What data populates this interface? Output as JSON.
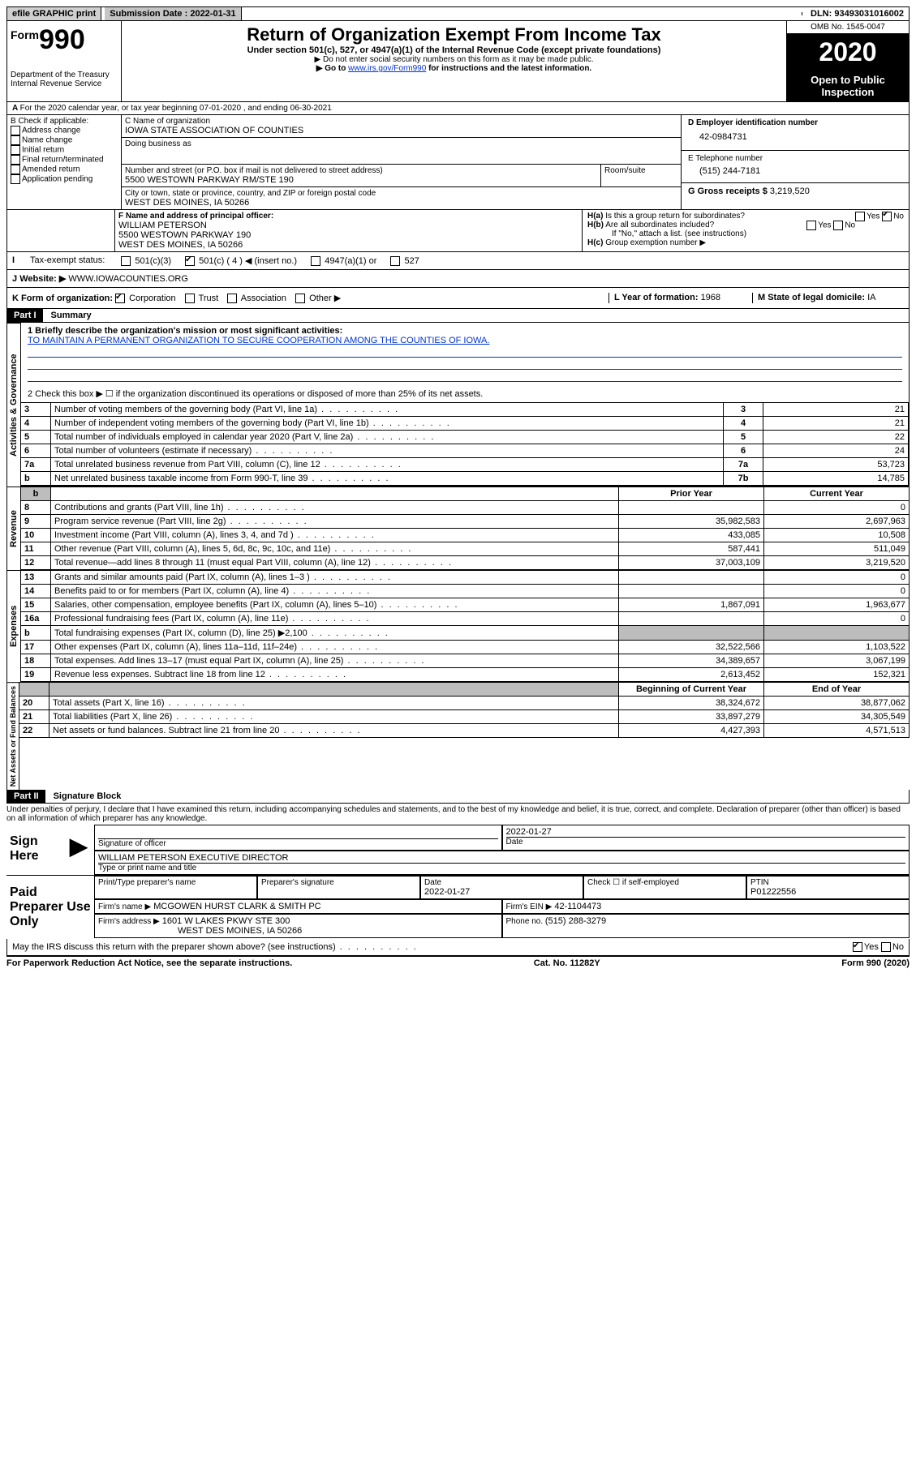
{
  "topbar": {
    "efile": "efile GRAPHIC print",
    "sub_label": "Submission Date : ",
    "sub_date": "2022-01-31",
    "dln_label": "DLN: ",
    "dln": "93493031016002"
  },
  "header": {
    "form_small": "Form",
    "form_num": "990",
    "dept": "Department of the Treasury\nInternal Revenue Service",
    "title": "Return of Organization Exempt From Income Tax",
    "subtitle": "Under section 501(c), 527, or 4947(a)(1) of the Internal Revenue Code (except private foundations)",
    "note1": "▶ Do not enter social security numbers on this form as it may be made public.",
    "note2_pre": "▶ Go to ",
    "note2_link": "www.irs.gov/Form990",
    "note2_post": " for instructions and the latest information.",
    "omb": "OMB No. 1545-0047",
    "year": "2020",
    "inspect": "Open to Public Inspection"
  },
  "lineA": "For the 2020 calendar year, or tax year beginning 07-01-2020 , and ending 06-30-2021",
  "boxB": {
    "heading": "B Check if applicable:",
    "items": [
      "Address change",
      "Name change",
      "Initial return",
      "Final return/terminated",
      "Amended return",
      "Application pending"
    ]
  },
  "boxC": {
    "name_label": "C Name of organization",
    "name": "IOWA STATE ASSOCIATION OF COUNTIES",
    "dba_label": "Doing business as",
    "street_label": "Number and street (or P.O. box if mail is not delivered to street address)",
    "street": "5500 WESTOWN PARKWAY RM/STE 190",
    "room_label": "Room/suite",
    "city_label": "City or town, state or province, country, and ZIP or foreign postal code",
    "city": "WEST DES MOINES, IA  50266"
  },
  "boxD": {
    "label": "D Employer identification number",
    "value": "42-0984731"
  },
  "boxE": {
    "label": "E Telephone number",
    "value": "(515) 244-7181"
  },
  "boxG": {
    "label": "G Gross receipts $ ",
    "value": "3,219,520"
  },
  "boxF": {
    "label": "F Name and address of principal officer:",
    "name": "WILLIAM PETERSON",
    "addr1": "5500 WESTOWN PARKWAY 190",
    "addr2": "WEST DES MOINES, IA  50266"
  },
  "boxH": {
    "a": "Is this a group return for subordinates?",
    "b": "Are all subordinates included?",
    "note": "If \"No,\" attach a list. (see instructions)",
    "c": "Group exemption number ▶"
  },
  "boxI": {
    "label": "Tax-exempt status:",
    "opts": [
      "501(c)(3)",
      "501(c) ( 4 ) ◀ (insert no.)",
      "4947(a)(1) or",
      "527"
    ]
  },
  "boxJ": {
    "label": "Website: ▶",
    "value": "WWW.IOWACOUNTIES.ORG"
  },
  "boxK": {
    "label": "K Form of organization:",
    "opts": [
      "Corporation",
      "Trust",
      "Association",
      "Other ▶"
    ]
  },
  "boxL": {
    "label": "L Year of formation: ",
    "value": "1968"
  },
  "boxM": {
    "label": "M State of legal domicile: ",
    "value": "IA"
  },
  "part1": {
    "tag": "Part I",
    "label": "Summary"
  },
  "summary": {
    "line1_label": "1  Briefly describe the organization's mission or most significant activities:",
    "mission": "TO MAINTAIN A PERMANENT ORGANIZATION TO SECURE COOPERATION AMONG THE COUNTIES OF IOWA.",
    "line2": "2   Check this box ▶ ☐ if the organization discontinued its operations or disposed of more than 25% of its net assets."
  },
  "vlabels": {
    "gov": "Activities & Governance",
    "rev": "Revenue",
    "exp": "Expenses",
    "net": "Net Assets or Fund Balances"
  },
  "columns": {
    "prior": "Prior Year",
    "current": "Current Year",
    "begin": "Beginning of Current Year",
    "end": "End of Year"
  },
  "rows": [
    {
      "n": "3",
      "label": "Number of voting members of the governing body (Part VI, line 1a)",
      "box": "3",
      "cur": "21"
    },
    {
      "n": "4",
      "label": "Number of independent voting members of the governing body (Part VI, line 1b)",
      "box": "4",
      "cur": "21"
    },
    {
      "n": "5",
      "label": "Total number of individuals employed in calendar year 2020 (Part V, line 2a)",
      "box": "5",
      "cur": "22"
    },
    {
      "n": "6",
      "label": "Total number of volunteers (estimate if necessary)",
      "box": "6",
      "cur": "24"
    },
    {
      "n": "7a",
      "label": "Total unrelated business revenue from Part VIII, column (C), line 12",
      "box": "7a",
      "cur": "53,723"
    },
    {
      "n": "b",
      "label": "Net unrelated business taxable income from Form 990-T, line 39",
      "box": "7b",
      "cur": "14,785"
    }
  ],
  "rev_rows": [
    {
      "n": "8",
      "label": "Contributions and grants (Part VIII, line 1h)",
      "prior": "",
      "cur": "0"
    },
    {
      "n": "9",
      "label": "Program service revenue (Part VIII, line 2g)",
      "prior": "35,982,583",
      "cur": "2,697,963"
    },
    {
      "n": "10",
      "label": "Investment income (Part VIII, column (A), lines 3, 4, and 7d )",
      "prior": "433,085",
      "cur": "10,508"
    },
    {
      "n": "11",
      "label": "Other revenue (Part VIII, column (A), lines 5, 6d, 8c, 9c, 10c, and 11e)",
      "prior": "587,441",
      "cur": "511,049"
    },
    {
      "n": "12",
      "label": "Total revenue—add lines 8 through 11 (must equal Part VIII, column (A), line 12)",
      "prior": "37,003,109",
      "cur": "3,219,520"
    }
  ],
  "exp_rows": [
    {
      "n": "13",
      "label": "Grants and similar amounts paid (Part IX, column (A), lines 1–3 )",
      "prior": "",
      "cur": "0"
    },
    {
      "n": "14",
      "label": "Benefits paid to or for members (Part IX, column (A), line 4)",
      "prior": "",
      "cur": "0"
    },
    {
      "n": "15",
      "label": "Salaries, other compensation, employee benefits (Part IX, column (A), lines 5–10)",
      "prior": "1,867,091",
      "cur": "1,963,677"
    },
    {
      "n": "16a",
      "label": "Professional fundraising fees (Part IX, column (A), line 11e)",
      "prior": "",
      "cur": "0"
    },
    {
      "n": "b",
      "label": "Total fundraising expenses (Part IX, column (D), line 25) ▶2,100",
      "prior": "grey",
      "cur": "grey"
    },
    {
      "n": "17",
      "label": "Other expenses (Part IX, column (A), lines 11a–11d, 11f–24e)",
      "prior": "32,522,566",
      "cur": "1,103,522"
    },
    {
      "n": "18",
      "label": "Total expenses. Add lines 13–17 (must equal Part IX, column (A), line 25)",
      "prior": "34,389,657",
      "cur": "3,067,199"
    },
    {
      "n": "19",
      "label": "Revenue less expenses. Subtract line 18 from line 12",
      "prior": "2,613,452",
      "cur": "152,321"
    }
  ],
  "net_rows": [
    {
      "n": "20",
      "label": "Total assets (Part X, line 16)",
      "prior": "38,324,672",
      "cur": "38,877,062"
    },
    {
      "n": "21",
      "label": "Total liabilities (Part X, line 26)",
      "prior": "33,897,279",
      "cur": "34,305,549"
    },
    {
      "n": "22",
      "label": "Net assets or fund balances. Subtract line 21 from line 20",
      "prior": "4,427,393",
      "cur": "4,571,513"
    }
  ],
  "part2": {
    "tag": "Part II",
    "label": "Signature Block"
  },
  "perjury": "Under penalties of perjury, I declare that I have examined this return, including accompanying schedules and statements, and to the best of my knowledge and belief, it is true, correct, and complete. Declaration of preparer (other than officer) is based on all information of which preparer has any knowledge.",
  "sign": {
    "here": "Sign Here",
    "sig_officer": "Signature of officer",
    "date_label": "Date",
    "date": "2022-01-27",
    "name": "WILLIAM PETERSON  EXECUTIVE DIRECTOR",
    "name_label": "Type or print name and title"
  },
  "paid": {
    "label": "Paid Preparer Use Only",
    "prep_name_label": "Print/Type preparer's name",
    "prep_sig_label": "Preparer's signature",
    "date_label": "Date",
    "date": "2022-01-27",
    "check_label": "Check ☐ if self-employed",
    "ptin_label": "PTIN",
    "ptin": "P01222556",
    "firm_name_label": "Firm's name    ▶",
    "firm_name": "MCGOWEN HURST CLARK & SMITH PC",
    "firm_ein_label": "Firm's EIN ▶",
    "firm_ein": "42-1104473",
    "firm_addr_label": "Firm's address ▶",
    "firm_addr1": "1601 W LAKES PKWY STE 300",
    "firm_addr2": "WEST DES MOINES, IA  50266",
    "phone_label": "Phone no. ",
    "phone": "(515) 288-3279"
  },
  "discuss": "May the IRS discuss this return with the preparer shown above? (see instructions)",
  "footer": {
    "left": "For Paperwork Reduction Act Notice, see the separate instructions.",
    "mid": "Cat. No. 11282Y",
    "right": "Form 990 (2020)"
  }
}
